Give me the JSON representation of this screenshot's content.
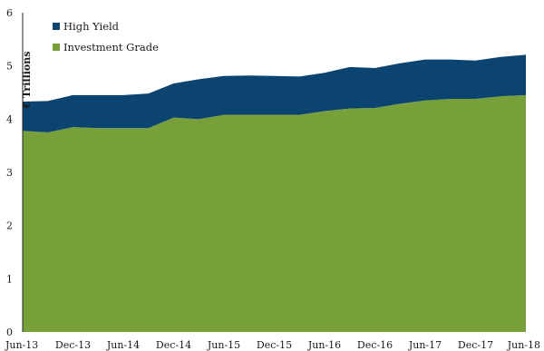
{
  "chart_data": {
    "type": "area",
    "stacked": true,
    "ylabel": "€ Trillions",
    "xlabel": "",
    "ylim": [
      0,
      6
    ],
    "yticks": [
      "0",
      "1",
      "2",
      "3",
      "4",
      "5",
      "6"
    ],
    "grid": false,
    "legend_position": "top-left",
    "x_tick_labels": [
      "Jun-13",
      "Dec-13",
      "Jun-14",
      "Dec-14",
      "Jun-15",
      "Dec-15",
      "Jun-16",
      "Dec-16",
      "Jun-17",
      "Dec-17",
      "Jun-18"
    ],
    "x": [
      "Jun-13",
      "Sep-13",
      "Dec-13",
      "Mar-14",
      "Jun-14",
      "Sep-14",
      "Dec-14",
      "Mar-15",
      "Jun-15",
      "Sep-15",
      "Dec-15",
      "Mar-16",
      "Jun-16",
      "Sep-16",
      "Dec-16",
      "Mar-17",
      "Jun-17",
      "Sep-17",
      "Dec-17",
      "Mar-18",
      "Jun-18"
    ],
    "series": [
      {
        "name": "Investment Grade",
        "color": "#77a03a",
        "values": [
          3.78,
          3.75,
          3.85,
          3.83,
          3.83,
          3.83,
          4.03,
          4.0,
          4.08,
          4.08,
          4.08,
          4.08,
          4.15,
          4.2,
          4.21,
          4.29,
          4.35,
          4.38,
          4.38,
          4.43,
          4.45
        ]
      },
      {
        "name": "High Yield",
        "color": "#0b4470",
        "values": [
          0.55,
          0.59,
          0.6,
          0.62,
          0.62,
          0.65,
          0.64,
          0.75,
          0.73,
          0.74,
          0.73,
          0.72,
          0.72,
          0.78,
          0.75,
          0.76,
          0.77,
          0.74,
          0.72,
          0.74,
          0.76
        ]
      }
    ]
  },
  "legend": [
    {
      "label": "High Yield",
      "color": "#0b4470"
    },
    {
      "label": "Investment Grade",
      "color": "#77a03a"
    }
  ]
}
